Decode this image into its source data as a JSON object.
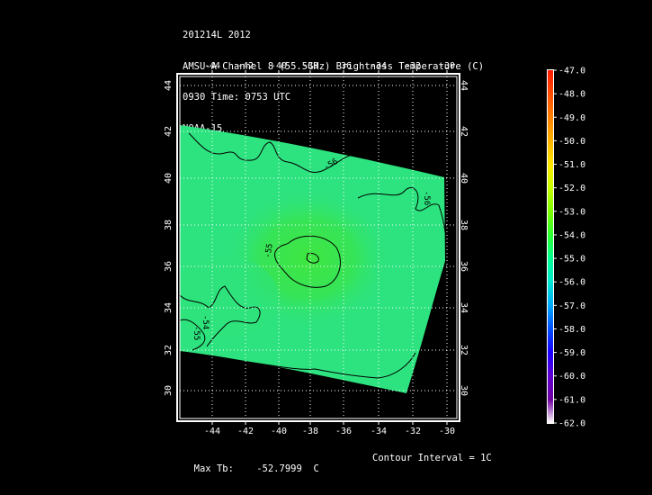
{
  "header": {
    "line1": "201214L 2012",
    "line2": "AMSU-A Channel 8 (55.5GHz) Brightness Temperature (C)",
    "line3": "0930 Time: 0753 UTC",
    "line4": "NOAA-15"
  },
  "map": {
    "lon_ticks": [
      "-44",
      "-42",
      "-40",
      "-38",
      "-36",
      "-34",
      "-32",
      "-30"
    ],
    "lat_ticks": [
      "30",
      "32",
      "34",
      "36",
      "38",
      "40",
      "42",
      "44"
    ],
    "contour_labels": [
      "-55",
      "-54",
      "-55",
      "-56",
      "-56"
    ],
    "colors": {
      "swath": "#2de37f",
      "warm_core": "#3fe640",
      "frame": "#ffffff",
      "grid": "#ffffff",
      "contour": "#000000"
    }
  },
  "colorbar": {
    "labels": [
      "-47.0",
      "-48.0",
      "-49.0",
      "-50.0",
      "-51.0",
      "-52.0",
      "-53.0",
      "-54.0",
      "-55.0",
      "-56.0",
      "-57.0",
      "-58.0",
      "-59.0",
      "-60.0",
      "-61.0",
      "-62.0"
    ],
    "colors": [
      "#ff1a00",
      "#ff4d00",
      "#ff8000",
      "#ffb300",
      "#ffe600",
      "#c8ff00",
      "#7dff00",
      "#2dff30",
      "#00ff90",
      "#00e8d0",
      "#00a8ff",
      "#0050ff",
      "#1a00ff",
      "#6000d0",
      "#7000a0",
      "#ffffff"
    ]
  },
  "footer": {
    "max_label": "Max Tb:",
    "max_value": "-52.7999",
    "unit": "C",
    "contour_interval": "Contour Interval = 1C"
  }
}
